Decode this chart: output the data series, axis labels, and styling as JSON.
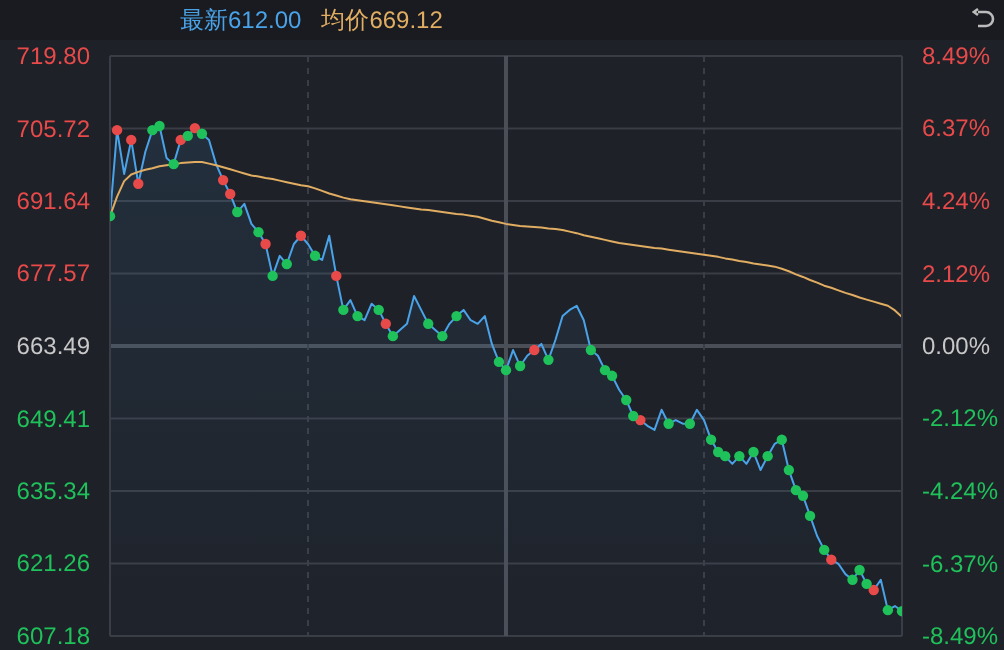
{
  "chart_data": {
    "type": "area",
    "grid": true,
    "categories": [
      null,
      null,
      null,
      null,
      null,
      null,
      null,
      null,
      null,
      null,
      null,
      null,
      null,
      null,
      null,
      null,
      null,
      null,
      null,
      null,
      null,
      null,
      null,
      null,
      null,
      null,
      null,
      null,
      null,
      null,
      null,
      null,
      null,
      null,
      null,
      null,
      null,
      null,
      null,
      null,
      null,
      null,
      null,
      null,
      null,
      null,
      null,
      null,
      null,
      null,
      null,
      null,
      null,
      null,
      null,
      null,
      null,
      null,
      null,
      null,
      null,
      null,
      null,
      null,
      null,
      null,
      null,
      null,
      null,
      null,
      null,
      null,
      null,
      null,
      null,
      null,
      null,
      null,
      null,
      null,
      null,
      null,
      null,
      null,
      null,
      null,
      null,
      null,
      null,
      null,
      null,
      null,
      null,
      null,
      null,
      null,
      null,
      null,
      null,
      null,
      null,
      null,
      null,
      null,
      null,
      null,
      null,
      null,
      null,
      null,
      null,
      null,
      null
    ],
    "ylim": [
      607.18,
      719.8
    ],
    "yticks": [
      607.18,
      621.26,
      635.34,
      649.41,
      663.49,
      677.57,
      691.64,
      705.72,
      {
        "value": 719.8,
        "label": "719.80"
      }
    ],
    "y2lim": [
      -8.49,
      8.49
    ],
    "y2ticks": [
      {
        "value": -8.49,
        "label": "-8.49%"
      },
      {
        "value": -6.37,
        "label": "-6.37%"
      },
      {
        "value": -4.24,
        "label": "-4.24%"
      },
      {
        "value": -2.12,
        "label": "-2.12%"
      },
      {
        "value": 0,
        "label": "0.00%"
      },
      {
        "value": 2.12,
        "label": "2.12%"
      },
      {
        "value": 4.24,
        "label": "4.24%"
      },
      {
        "value": 6.37,
        "label": "6.37%"
      },
      {
        "value": 8.49,
        "label": "8.49%"
      }
    ],
    "series": [
      {
        "name": "最新612.00",
        "color": "#4aa3e8",
        "values": [
          688.7,
          705.4,
          696.9,
          703.5,
          695.0,
          701.2,
          705.4,
          706.2,
          700.0,
          698.8,
          703.5,
          704.3,
          705.8,
          704.7,
          703.5,
          698.8,
          695.7,
          693.0,
          689.5,
          691.1,
          687.2,
          685.6,
          683.3,
          677.1,
          681.0,
          679.4,
          683.3,
          684.9,
          683.3,
          681.0,
          680.2,
          684.9,
          677.1,
          670.5,
          672.4,
          669.3,
          668.5,
          671.7,
          670.5,
          667.8,
          665.4,
          666.6,
          667.8,
          673.2,
          670.5,
          667.8,
          666.6,
          665.4,
          667.8,
          669.3,
          670.5,
          668.5,
          667.8,
          669.3,
          663.9,
          660.4,
          658.8,
          662.7,
          659.6,
          661.6,
          662.7,
          663.9,
          660.8,
          664.7,
          669.3,
          670.5,
          671.3,
          668.5,
          662.7,
          661.6,
          658.8,
          657.7,
          655.0,
          653.0,
          649.9,
          649.1,
          648.0,
          647.2,
          651.1,
          648.4,
          649.1,
          648.4,
          648.4,
          651.1,
          649.1,
          645.3,
          642.9,
          642.1,
          640.6,
          642.1,
          640.6,
          642.9,
          639.4,
          642.1,
          644.5,
          645.3,
          639.4,
          635.5,
          634.4,
          630.5,
          626.6,
          623.9,
          622.0,
          621.2,
          619.2,
          618.1,
          620.0,
          617.3,
          616.1,
          618.1,
          612.2,
          613.0,
          612.0
        ]
      },
      {
        "name": "均价669.12",
        "type": "line",
        "color": "#e0ad62",
        "values": [
          688.7,
          692.5,
          695.5,
          696.8,
          697.3,
          697.7,
          698.0,
          698.4,
          698.6,
          698.8,
          699.0,
          699.1,
          699.2,
          699.2,
          698.9,
          698.6,
          698.2,
          697.8,
          697.4,
          697.0,
          696.6,
          696.4,
          696.1,
          695.9,
          695.6,
          695.3,
          695.0,
          694.7,
          694.5,
          694.1,
          693.6,
          693.1,
          692.7,
          692.3,
          692.0,
          691.8,
          691.6,
          691.4,
          691.2,
          691.0,
          690.8,
          690.6,
          690.4,
          690.2,
          690.0,
          689.9,
          689.7,
          689.5,
          689.3,
          689.1,
          689.0,
          688.8,
          688.6,
          688.2,
          687.8,
          687.5,
          687.2,
          687.0,
          686.8,
          686.7,
          686.6,
          686.5,
          686.3,
          686.2,
          686.0,
          685.7,
          685.4,
          685.0,
          684.7,
          684.4,
          684.1,
          683.8,
          683.5,
          683.3,
          683.1,
          682.9,
          682.7,
          682.5,
          682.4,
          682.2,
          682.0,
          681.8,
          681.6,
          681.4,
          681.2,
          681.0,
          680.8,
          680.5,
          680.3,
          680.0,
          679.8,
          679.5,
          679.3,
          679.1,
          678.9,
          678.5,
          678.0,
          677.4,
          676.9,
          676.3,
          675.8,
          675.2,
          674.8,
          674.3,
          673.8,
          673.4,
          672.9,
          672.5,
          672.1,
          671.7,
          671.3,
          670.4,
          669.1
        ]
      },
      {
        "type": "scatter",
        "marker": "circle",
        "color": "#e84a4a",
        "values": [
          null,
          705.4,
          null,
          703.5,
          695.0,
          null,
          null,
          null,
          null,
          null,
          703.5,
          null,
          705.8,
          null,
          null,
          null,
          695.7,
          693.0,
          null,
          null,
          null,
          null,
          683.3,
          null,
          null,
          null,
          null,
          684.9,
          null,
          null,
          null,
          null,
          677.1,
          null,
          null,
          null,
          null,
          null,
          null,
          667.8,
          null,
          null,
          null,
          null,
          null,
          null,
          null,
          null,
          null,
          null,
          null,
          null,
          null,
          null,
          null,
          null,
          null,
          null,
          null,
          null,
          662.7,
          null,
          null,
          null,
          null,
          null,
          null,
          null,
          null,
          null,
          null,
          null,
          null,
          null,
          null,
          649.1,
          null,
          null,
          null,
          null,
          null,
          null,
          null,
          null,
          null,
          null,
          null,
          null,
          null,
          null,
          null,
          null,
          null,
          null,
          null,
          null,
          null,
          null,
          null,
          null,
          null,
          null,
          622.0,
          null,
          null,
          null,
          null,
          null,
          616.1,
          null,
          null,
          null,
          null
        ]
      },
      {
        "type": "scatter",
        "marker": "circle",
        "color": "#1fc15a",
        "values": [
          688.7,
          null,
          null,
          null,
          null,
          null,
          705.4,
          706.2,
          null,
          698.8,
          null,
          704.3,
          null,
          704.7,
          null,
          null,
          null,
          null,
          689.5,
          null,
          null,
          685.6,
          null,
          677.1,
          null,
          679.4,
          null,
          null,
          null,
          681.0,
          null,
          null,
          null,
          670.5,
          null,
          669.3,
          null,
          null,
          670.5,
          null,
          665.4,
          null,
          null,
          null,
          null,
          667.8,
          null,
          665.4,
          null,
          669.3,
          null,
          null,
          null,
          null,
          null,
          660.4,
          658.8,
          null,
          659.6,
          null,
          null,
          null,
          660.8,
          null,
          null,
          null,
          null,
          null,
          662.7,
          null,
          658.8,
          657.7,
          null,
          653.0,
          649.9,
          null,
          null,
          null,
          null,
          648.4,
          null,
          null,
          648.4,
          null,
          null,
          645.3,
          642.9,
          642.1,
          null,
          642.1,
          null,
          642.9,
          null,
          642.1,
          null,
          645.3,
          639.4,
          635.5,
          634.4,
          630.5,
          null,
          623.9,
          null,
          null,
          null,
          618.1,
          620.0,
          617.3,
          null,
          null,
          612.2,
          null,
          612.0
        ]
      }
    ]
  }
}
